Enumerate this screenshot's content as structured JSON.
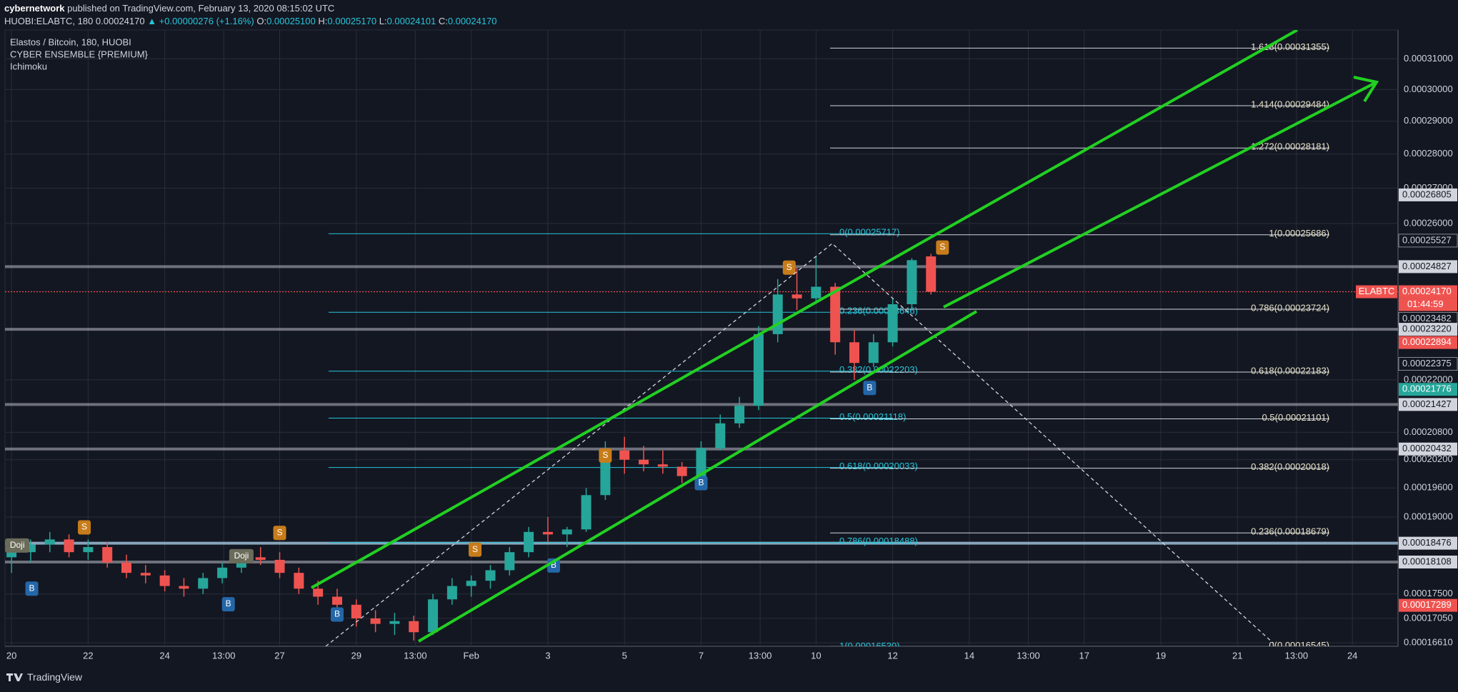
{
  "header": {
    "publisher": "cybernetwork",
    "published": "published on TradingView.com, February 13, 2020 08:15:02 UTC",
    "symbol": "HUOBI:ELABTC, 180",
    "last": "0.00024170",
    "change": "▲ +0.00000276 (+1.16%)",
    "ohlc": [
      {
        "key": "O:",
        "value": "0.00025100"
      },
      {
        "key": "H:",
        "value": "0.00025170"
      },
      {
        "key": "L:",
        "value": "0.00024101"
      },
      {
        "key": "C:",
        "value": "0.00024170"
      }
    ]
  },
  "chart_data": {
    "type": "candlestick",
    "title": "Elastos / Bitcoin, 180, HUOBI",
    "indicators": [
      "CYBER ENSEMBLE {PREMIUM}",
      "Ichimoku"
    ],
    "log_scale": true,
    "grid": true,
    "up_color": "#26a69a",
    "down_color": "#ef5350",
    "xlim": [
      -0.17,
      36.19
    ],
    "ylim": [
      0.00016549,
      0.00031969
    ],
    "xticks": [
      {
        "value": 0,
        "label": "20"
      },
      {
        "value": 2,
        "label": "22"
      },
      {
        "value": 4,
        "label": "24"
      },
      {
        "value": 5.54,
        "label": "13:00"
      },
      {
        "value": 7,
        "label": "27"
      },
      {
        "value": 9,
        "label": "29"
      },
      {
        "value": 10.54,
        "label": "13:00"
      },
      {
        "value": 12,
        "label": "Feb"
      },
      {
        "value": 14,
        "label": "3"
      },
      {
        "value": 16,
        "label": "5"
      },
      {
        "value": 18,
        "label": "7"
      },
      {
        "value": 19.54,
        "label": "13:00"
      },
      {
        "value": 21,
        "label": "10"
      },
      {
        "value": 23,
        "label": "12"
      },
      {
        "value": 25,
        "label": "14"
      },
      {
        "value": 26.54,
        "label": "13:00"
      },
      {
        "value": 28,
        "label": "17"
      },
      {
        "value": 30,
        "label": "19"
      },
      {
        "value": 32,
        "label": "21"
      },
      {
        "value": 33.54,
        "label": "13:00"
      },
      {
        "value": 35,
        "label": "24"
      }
    ],
    "yticks": [
      {
        "value": 0.00031,
        "label": "0.00031000"
      },
      {
        "value": 0.0003,
        "label": "0.00030000"
      },
      {
        "value": 0.00029,
        "label": "0.00029000"
      },
      {
        "value": 0.00028,
        "label": "0.00028000"
      },
      {
        "value": 0.00027,
        "label": "0.00027000"
      },
      {
        "value": 0.00026,
        "label": "0.00026000"
      },
      {
        "value": 0.00022,
        "label": "0.00022000"
      },
      {
        "value": 0.000208,
        "label": "0.00020800"
      },
      {
        "value": 0.000202,
        "label": "0.00020200"
      },
      {
        "value": 0.000196,
        "label": "0.00019600"
      },
      {
        "value": 0.00019,
        "label": "0.00019000"
      },
      {
        "value": 0.000175,
        "label": "0.00017500"
      },
      {
        "value": 0.0001705,
        "label": "0.00017050"
      },
      {
        "value": 0.0001661,
        "label": "0.00016610"
      }
    ],
    "x": [
      0,
      0.5,
      1,
      1.5,
      2,
      2.5,
      3,
      3.5,
      4,
      4.5,
      5,
      5.5,
      6,
      6.5,
      7,
      7.5,
      8,
      8.5,
      9,
      9.5,
      10,
      10.5,
      11,
      11.5,
      12,
      12.5,
      13,
      13.5,
      14,
      14.5,
      15,
      15.5,
      16,
      16.5,
      17,
      17.5,
      18,
      18.5,
      19,
      19.5,
      20,
      20.5,
      21,
      21.5,
      22,
      22.5,
      23,
      23.5,
      24
    ],
    "open": [
      0.000182,
      0.000183,
      0.0001845,
      0.0001855,
      0.000183,
      0.000184,
      0.000181,
      0.000179,
      0.0001785,
      0.0001765,
      0.000176,
      0.000178,
      0.00018,
      0.000182,
      0.0001815,
      0.000179,
      0.000176,
      0.0001745,
      0.000173,
      0.0001705,
      0.0001695,
      0.00017,
      0.000168,
      0.000174,
      0.0001765,
      0.0001775,
      0.0001795,
      0.000183,
      0.000187,
      0.0001865,
      0.0001875,
      0.0001945,
      0.000204,
      0.000202,
      0.000201,
      0.0002005,
      0.0001985,
      0.0002045,
      0.00021,
      0.000214,
      0.000231,
      0.000241,
      0.00024,
      0.000243,
      0.000229,
      0.000224,
      0.000229,
      0.0002385,
      0.000251
    ],
    "high": [
      0.000185,
      0.0001855,
      0.000187,
      0.0001865,
      0.0001855,
      0.000185,
      0.0001825,
      0.0001805,
      0.0001795,
      0.000178,
      0.000179,
      0.000181,
      0.0001835,
      0.000184,
      0.000183,
      0.00018,
      0.0001775,
      0.000176,
      0.000174,
      0.000172,
      0.0001715,
      0.000171,
      0.000175,
      0.000178,
      0.0001785,
      0.0001805,
      0.000184,
      0.000188,
      0.00019,
      0.000188,
      0.000196,
      0.000206,
      0.000207,
      0.000205,
      0.000204,
      0.0002015,
      0.000206,
      0.000212,
      0.000216,
      0.000233,
      0.000245,
      0.000248,
      0.000251,
      0.000244,
      0.000232,
      0.000231,
      0.00024,
      0.0002505,
      0.0002517
    ],
    "low": [
      0.000179,
      0.000181,
      0.000183,
      0.000182,
      0.0001815,
      0.00018,
      0.000178,
      0.000177,
      0.0001755,
      0.0001745,
      0.000175,
      0.000177,
      0.000179,
      0.0001805,
      0.000178,
      0.000175,
      0.000173,
      0.000172,
      0.000169,
      0.000168,
      0.0001675,
      0.0001665,
      0.0001675,
      0.000173,
      0.0001745,
      0.000176,
      0.0001785,
      0.000182,
      0.000185,
      0.000184,
      0.000187,
      0.0001935,
      0.000199,
      0.0001995,
      0.000199,
      0.000197,
      0.000198,
      0.000204,
      0.000209,
      0.000213,
      0.000229,
      0.000237,
      0.000239,
      0.000226,
      0.00022,
      0.000223,
      0.000228,
      0.000237,
      0.00024101
    ],
    "close": [
      0.000183,
      0.0001845,
      0.0001855,
      0.000183,
      0.000184,
      0.000181,
      0.000179,
      0.0001785,
      0.0001765,
      0.000176,
      0.000178,
      0.00018,
      0.000182,
      0.0001815,
      0.000179,
      0.000176,
      0.0001745,
      0.000173,
      0.0001705,
      0.0001695,
      0.00017,
      0.000168,
      0.000174,
      0.0001765,
      0.0001775,
      0.0001795,
      0.000183,
      0.000187,
      0.0001865,
      0.0001875,
      0.0001945,
      0.000204,
      0.000202,
      0.000201,
      0.0002005,
      0.0001985,
      0.0002045,
      0.00021,
      0.000214,
      0.000231,
      0.000241,
      0.00024,
      0.000243,
      0.000229,
      0.000224,
      0.000229,
      0.0002385,
      0.00025,
      0.0002417
    ],
    "fib_left": [
      {
        "value": 0.00025717,
        "label": "0(0.00025717)"
      },
      {
        "value": 0.00023646,
        "label": "0.236(0.00023646)"
      },
      {
        "value": 0.00022203,
        "label": "0.382(0.00022203)"
      },
      {
        "value": 0.00021118,
        "label": "0.5(0.00021118)"
      },
      {
        "value": 0.00020033,
        "label": "0.618(0.00020033)"
      },
      {
        "value": 0.00018488,
        "label": "0.786(0.00018488)"
      },
      {
        "value": 0.0001653,
        "label": "1(0.00016530)"
      }
    ],
    "fib_right": [
      {
        "value": 0.00031355,
        "label": "1.618(0.00031355)"
      },
      {
        "value": 0.00029484,
        "label": "1.414(0.00029484)"
      },
      {
        "value": 0.00028181,
        "label": "1.272(0.00028181)"
      },
      {
        "value": 0.00025686,
        "label": "1(0.00025686)"
      },
      {
        "value": 0.00023724,
        "label": "0.786(0.00023724)"
      },
      {
        "value": 0.00022183,
        "label": "0.618(0.00022183)"
      },
      {
        "value": 0.00021101,
        "label": "0.5(0.00021101)"
      },
      {
        "value": 0.00020018,
        "label": "0.382(0.00020018)"
      },
      {
        "value": 0.00018679,
        "label": "0.236(0.00018679)"
      },
      {
        "value": 0.00016545,
        "label": "0(0.00016545)"
      }
    ],
    "price_levels": [
      {
        "value": 0.00026805,
        "label": "0.00026805",
        "style": "light"
      },
      {
        "value": 0.00025527,
        "label": "0.00025527",
        "style": "dark"
      },
      {
        "value": 0.00024827,
        "label": "0.00024827",
        "style": "light",
        "line": "gray"
      },
      {
        "value": 0.0002417,
        "label": "0.00024170",
        "style": "red",
        "line": "dotted",
        "tag": "ELABTC",
        "countdown": "01:44:59"
      },
      {
        "value": 0.00023482,
        "label": "0.00023482",
        "style": "dark"
      },
      {
        "value": 0.0002322,
        "label": "0.00023220",
        "style": "light",
        "line": "gray"
      },
      {
        "value": 0.00022894,
        "label": "0.00022894",
        "style": "red"
      },
      {
        "value": 0.00022375,
        "label": "0.00022375",
        "style": "dark"
      },
      {
        "value": 0.00021776,
        "label": "0.00021776",
        "style": "green"
      },
      {
        "value": 0.00021427,
        "label": "0.00021427",
        "style": "light",
        "line": "gray"
      },
      {
        "value": 0.00020432,
        "label": "0.00020432",
        "style": "light",
        "line": "gray"
      },
      {
        "value": 0.00018476,
        "label": "0.00018476",
        "style": "light",
        "line": "blue"
      },
      {
        "value": 0.00018108,
        "label": "0.00018108",
        "style": "light",
        "line": "gray"
      },
      {
        "value": 0.00017289,
        "label": "0.00017289",
        "style": "red"
      }
    ],
    "signals": [
      {
        "label": "Doji",
        "x": 0.15,
        "y": 0.0001843
      },
      {
        "label": "B",
        "x": 0.53,
        "y": 0.000176
      },
      {
        "label": "S",
        "x": 1.9,
        "y": 0.0001879
      },
      {
        "label": "B",
        "x": 5.66,
        "y": 0.0001731
      },
      {
        "label": "Doji",
        "x": 6.0,
        "y": 0.0001822
      },
      {
        "label": "S",
        "x": 7.0,
        "y": 0.0001868
      },
      {
        "label": "B",
        "x": 8.5,
        "y": 0.0001712
      },
      {
        "label": "S",
        "x": 12.1,
        "y": 0.0001835
      },
      {
        "label": "B",
        "x": 14.15,
        "y": 0.0001804
      },
      {
        "label": "S",
        "x": 15.5,
        "y": 0.0002029
      },
      {
        "label": "B",
        "x": 18.0,
        "y": 0.000197
      },
      {
        "label": "S",
        "x": 20.3,
        "y": 0.000248
      },
      {
        "label": "B",
        "x": 22.4,
        "y": 0.0002181
      },
      {
        "label": "S",
        "x": 24.3,
        "y": 0.0002534
      }
    ]
  },
  "footer": {
    "brand": "TradingView"
  }
}
